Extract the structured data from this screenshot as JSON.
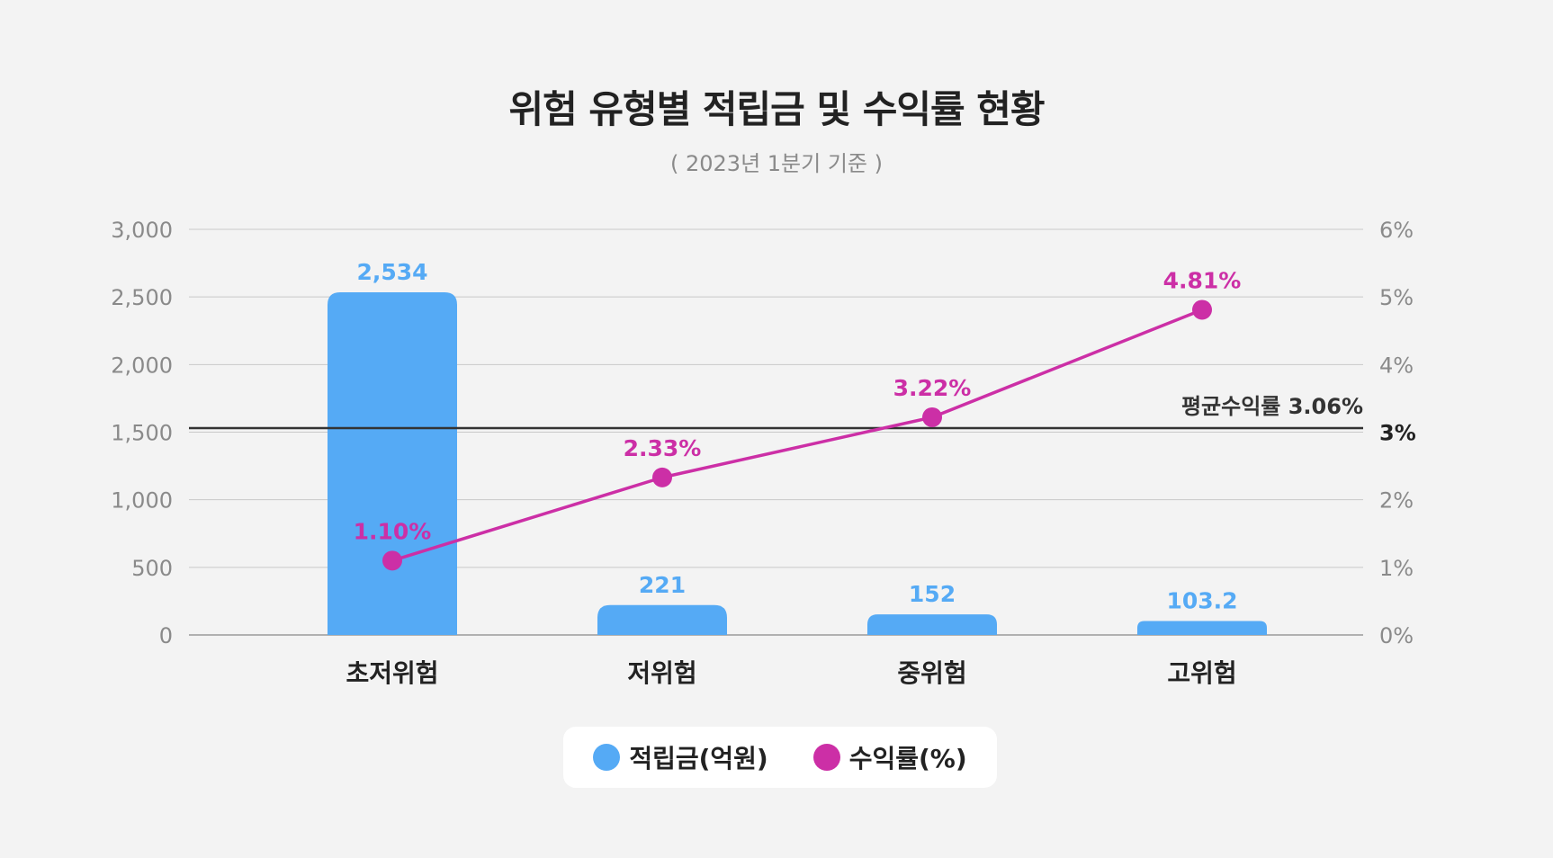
{
  "chart_data": {
    "type": "bar",
    "title": "위험 유형별 적립금 및 수익률 현황",
    "subtitle": "( 2023년 1분기 기준 )",
    "categories": [
      "초저위험",
      "저위험",
      "중위험",
      "고위험"
    ],
    "series": [
      {
        "name": "적립금(억원)",
        "type": "bar",
        "axis": "left",
        "color": "#55aaf5",
        "values": [
          2534,
          221,
          152,
          103.2
        ],
        "labels": [
          "2,534",
          "221",
          "152",
          "103.2"
        ]
      },
      {
        "name": "수익률(%)",
        "type": "line",
        "axis": "right",
        "color": "#cc2fa6",
        "values": [
          1.1,
          2.33,
          3.22,
          4.81
        ],
        "labels": [
          "1.10%",
          "2.33%",
          "3.22%",
          "4.81%"
        ]
      }
    ],
    "y_left": {
      "ylim": [
        0,
        3000
      ],
      "ticks": [
        0,
        500,
        1000,
        1500,
        2000,
        2500,
        3000
      ],
      "tick_labels": [
        "0",
        "500",
        "1,000",
        "1,500",
        "2,000",
        "2,500",
        "3,000"
      ]
    },
    "y_right": {
      "ylim": [
        0,
        6
      ],
      "ticks": [
        0,
        1,
        2,
        3,
        4,
        5,
        6
      ],
      "tick_labels": [
        "0%",
        "1%",
        "2%",
        "3%",
        "4%",
        "5%",
        "6%"
      ]
    },
    "reference_line": {
      "label": "평균수익률 3.06%",
      "value": 3.06,
      "axis": "right"
    },
    "grid": true,
    "legend_position": "bottom-center"
  }
}
